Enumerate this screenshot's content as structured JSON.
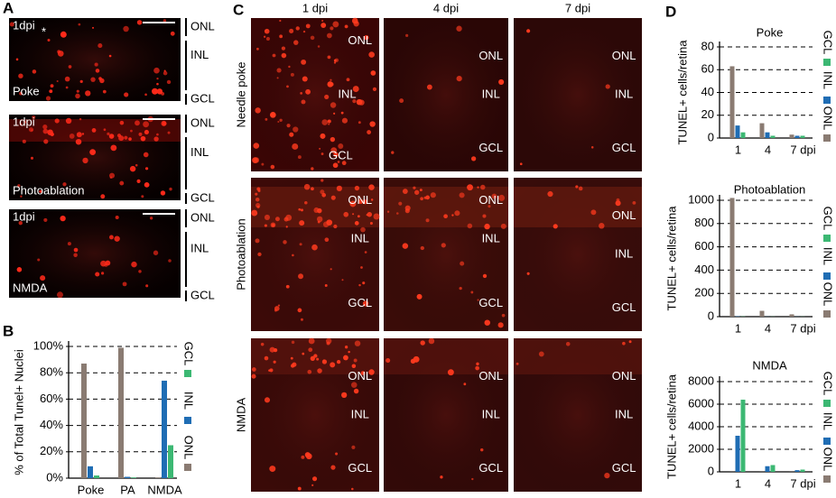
{
  "panel_labels": [
    "A",
    "B",
    "C",
    "D"
  ],
  "panel_a": {
    "images": [
      {
        "time": "1dpi",
        "condition": "Poke",
        "star": "*",
        "layers": [
          "ONL",
          "INL",
          "GCL"
        ]
      },
      {
        "time": "1dpi",
        "condition": "Photoablation",
        "layers": [
          "ONL",
          "INL",
          "GCL"
        ]
      },
      {
        "time": "1dpi",
        "condition": "NMDA",
        "layers": [
          "ONL",
          "INL",
          "GCL"
        ]
      }
    ]
  },
  "panel_c": {
    "columns": [
      "1 dpi",
      "4 dpi",
      "7 dpi"
    ],
    "rows": [
      {
        "name": "Needle poke",
        "layers": [
          "ONL",
          "INL",
          "GCL"
        ]
      },
      {
        "name": "Photoablation",
        "layers": [
          "ONL",
          "INL",
          "GCL"
        ]
      },
      {
        "name": "NMDA",
        "layers": [
          "ONL",
          "INL",
          "GCL"
        ]
      }
    ]
  },
  "chart_data": [
    {
      "type": "bar",
      "y_label": "% of Total Tunel+ Nuclei",
      "categories": [
        "Poke",
        "PA",
        "NMDA"
      ],
      "series": [
        {
          "name": "ONL",
          "color": "#8a7b72",
          "values": [
            87,
            99,
            0.5
          ]
        },
        {
          "name": "INL",
          "color": "#1f6db4",
          "values": [
            9,
            1,
            74
          ]
        },
        {
          "name": "GCL",
          "color": "#3cb873",
          "values": [
            2,
            0.5,
            25
          ]
        }
      ],
      "ylim": [
        0,
        100
      ],
      "yticks": [
        {
          "value": 0,
          "label": "0%"
        },
        {
          "value": 20,
          "label": "20%"
        },
        {
          "value": 40,
          "label": "40%"
        },
        {
          "value": 60,
          "label": "60%"
        },
        {
          "value": 80,
          "label": "80%"
        },
        {
          "value": 100,
          "label": "100%"
        }
      ],
      "grid": true,
      "legend": "right"
    },
    {
      "type": "bar",
      "title": "Poke",
      "y_label": "TUNEL+ cells/retina",
      "categories": [
        "1",
        "4",
        "7 dpi"
      ],
      "series": [
        {
          "name": "ONL",
          "color": "#8a7b72",
          "values": [
            63,
            13,
            3
          ]
        },
        {
          "name": "INL",
          "color": "#1f6db4",
          "values": [
            11,
            5,
            2
          ]
        },
        {
          "name": "GCL",
          "color": "#3cb873",
          "values": [
            5,
            2,
            2
          ]
        }
      ],
      "ylim": [
        0,
        80
      ],
      "yticks": [
        0,
        20,
        40,
        60,
        80
      ],
      "grid": true,
      "legend": "right"
    },
    {
      "type": "bar",
      "title": "Photoablation",
      "y_label": "TUNEL+ cells/retina",
      "categories": [
        "1",
        "4",
        "7 dpi"
      ],
      "series": [
        {
          "name": "ONL",
          "color": "#8a7b72",
          "values": [
            1020,
            50,
            20
          ]
        },
        {
          "name": "INL",
          "color": "#1f6db4",
          "values": [
            3,
            1,
            1
          ]
        },
        {
          "name": "GCL",
          "color": "#3cb873",
          "values": [
            2,
            1,
            1
          ]
        }
      ],
      "ylim": [
        0,
        1000
      ],
      "yticks": [
        0,
        200,
        400,
        600,
        800,
        1000
      ],
      "grid": true,
      "legend": "right"
    },
    {
      "type": "bar",
      "title": "NMDA",
      "y_label": "TUNEL+ cells/retina",
      "categories": [
        "1",
        "4",
        "7 dpi"
      ],
      "series": [
        {
          "name": "ONL",
          "color": "#8a7b72",
          "values": [
            10,
            10,
            10
          ]
        },
        {
          "name": "INL",
          "color": "#1f6db4",
          "values": [
            3200,
            500,
            150
          ]
        },
        {
          "name": "GCL",
          "color": "#3cb873",
          "values": [
            6400,
            600,
            200
          ]
        }
      ],
      "ylim": [
        0,
        8000
      ],
      "yticks": [
        0,
        2000,
        4000,
        6000,
        8000
      ],
      "grid": true,
      "legend": "right"
    }
  ]
}
